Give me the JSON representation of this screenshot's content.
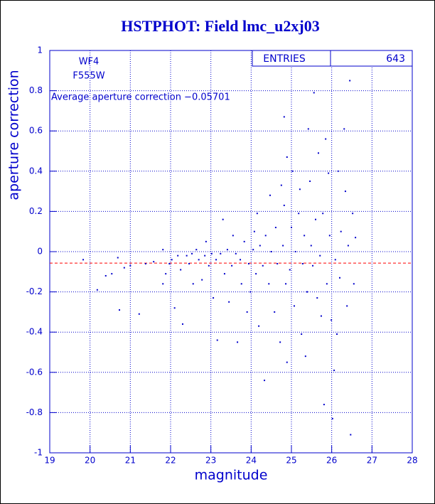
{
  "chart_data": {
    "type": "scatter",
    "title": "HSTPHOT: Field lmc_u2xj03",
    "xlabel": "magnitude",
    "ylabel": "aperture correction",
    "annotations": [
      "WF4",
      "F555W"
    ],
    "stats": {
      "label": "ENTRIES",
      "value": 643
    },
    "hline": {
      "value": -0.05701,
      "label": "Average aperture correction −0.05701",
      "color": "#ff0000"
    },
    "xlim": [
      19,
      28
    ],
    "ylim": [
      -1,
      1
    ],
    "xticks": [
      19,
      20,
      21,
      22,
      23,
      24,
      25,
      26,
      27,
      28
    ],
    "yticks": [
      -1,
      -0.8,
      -0.6,
      -0.4,
      -0.2,
      0,
      0.2,
      0.4,
      0.6,
      0.8,
      1
    ],
    "grid": true,
    "color": "#0000cc",
    "x": [
      19.83,
      20.18,
      20.39,
      20.54,
      20.73,
      20.69,
      20.85,
      21.0,
      21.22,
      21.38,
      21.58,
      21.81,
      21.81,
      21.88,
      21.97,
      22.03,
      22.1,
      22.18,
      22.25,
      22.3,
      22.4,
      22.46,
      22.53,
      22.56,
      22.64,
      22.7,
      22.78,
      22.85,
      22.88,
      22.95,
      23.02,
      23.06,
      23.13,
      23.16,
      23.24,
      23.3,
      23.34,
      23.41,
      23.45,
      23.52,
      23.55,
      23.62,
      23.66,
      23.73,
      23.76,
      23.83,
      23.9,
      23.94,
      23.98,
      24.05,
      24.08,
      24.12,
      24.15,
      24.19,
      24.22,
      24.29,
      24.33,
      24.36,
      24.44,
      24.47,
      24.5,
      24.58,
      24.61,
      24.65,
      24.72,
      24.75,
      24.79,
      24.82,
      24.86,
      24.89,
      24.82,
      24.89,
      24.96,
      25.0,
      25.03,
      25.07,
      25.1,
      25.18,
      25.21,
      25.25,
      25.28,
      25.32,
      25.35,
      25.39,
      25.42,
      25.46,
      25.49,
      25.53,
      25.56,
      25.6,
      25.64,
      25.67,
      25.71,
      25.74,
      25.78,
      25.81,
      25.85,
      25.88,
      25.92,
      25.95,
      25.99,
      26.02,
      26.06,
      26.09,
      26.13,
      26.16,
      26.2,
      26.23,
      26.31,
      26.34,
      26.38,
      26.41,
      26.45,
      26.47,
      26.52,
      26.55,
      26.59
    ],
    "y": [
      -0.04,
      -0.19,
      -0.12,
      -0.11,
      -0.29,
      -0.03,
      -0.08,
      -0.07,
      -0.31,
      -0.06,
      -0.05,
      0.01,
      -0.16,
      -0.11,
      -0.06,
      -0.04,
      -0.28,
      -0.02,
      -0.09,
      -0.36,
      -0.02,
      -0.06,
      -0.01,
      -0.16,
      0.01,
      -0.04,
      -0.14,
      -0.02,
      0.05,
      -0.07,
      -0.01,
      -0.23,
      -0.04,
      -0.44,
      -0.01,
      0.16,
      -0.11,
      0.01,
      -0.25,
      -0.07,
      0.08,
      -0.01,
      -0.45,
      -0.04,
      -0.16,
      0.05,
      -0.3,
      -0.06,
      -0.2,
      0.01,
      0.1,
      -0.11,
      0.19,
      -0.37,
      0.03,
      -0.07,
      -0.64,
      0.08,
      -0.16,
      0.28,
      0,
      -0.3,
      0.12,
      -0.06,
      -0.45,
      0.33,
      0.03,
      0.23,
      -0.16,
      -0.55,
      0.67,
      0.47,
      -0.09,
      0.12,
      0.4,
      -0.27,
      0,
      0.19,
      0.31,
      -0.41,
      -0.06,
      0.08,
      -0.52,
      -0.2,
      0.61,
      0.35,
      0.03,
      -0.07,
      0.79,
      0.16,
      -0.23,
      0.49,
      -0.02,
      -0.32,
      0.19,
      -0.76,
      0.56,
      -0.16,
      0.39,
      0.08,
      -0.34,
      -0.83,
      -0.59,
      -0.04,
      -0.41,
      0.4,
      -0.13,
      0.1,
      0.61,
      0.3,
      -0.27,
      0.03,
      0.85,
      -0.91,
      0.19,
      -0.16,
      0.07
    ]
  }
}
